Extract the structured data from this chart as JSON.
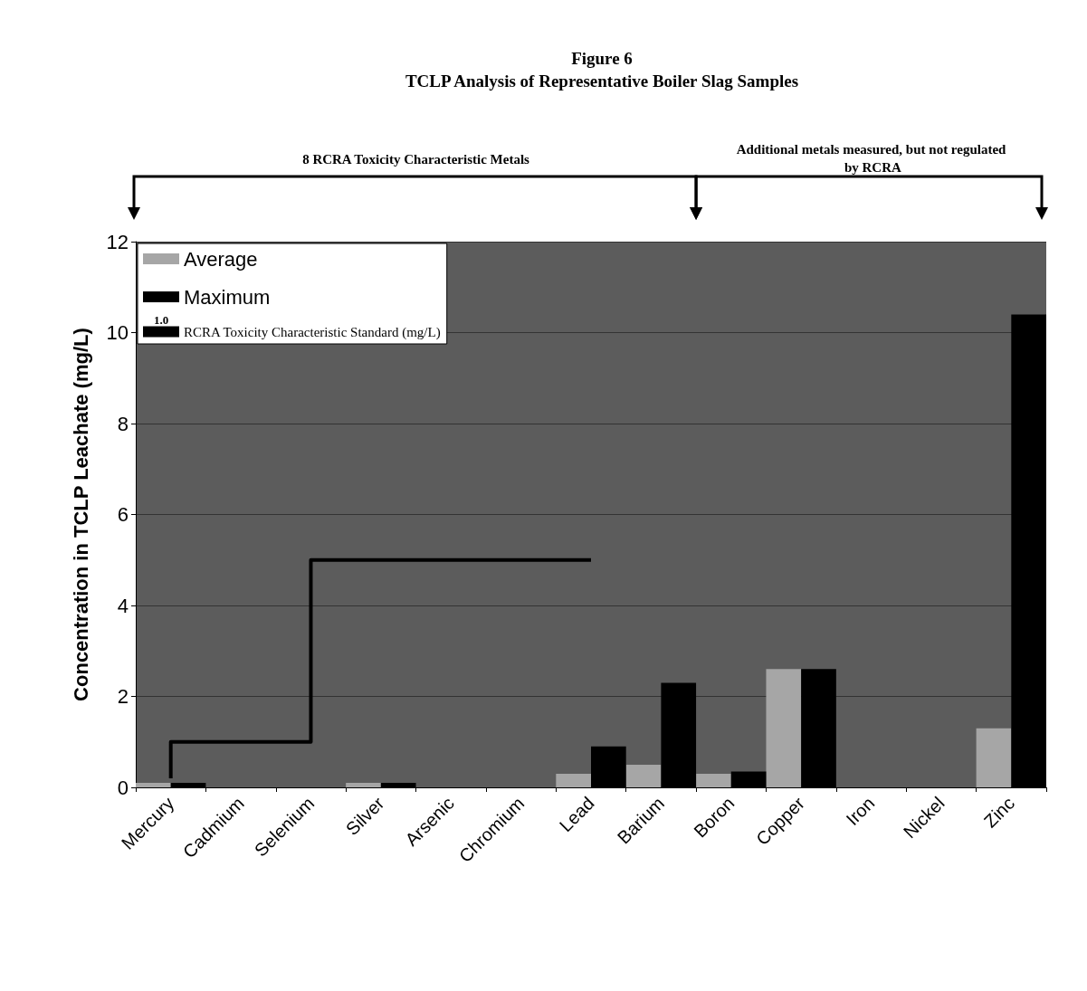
{
  "chart_data": {
    "type": "bar",
    "title": "Figure 6",
    "subtitle": "TCLP Analysis of Representative Boiler Slag Samples",
    "ylabel": "Concentration in TCLP Leachate (mg/L)",
    "categories": [
      "Mercury",
      "Cadmium",
      "Selenium",
      "Silver",
      "Arsenic",
      "Chromium",
      "Lead",
      "Barium",
      "Boron",
      "Copper",
      "Iron",
      "Nickel",
      "Zinc"
    ],
    "series": [
      {
        "name": "Average",
        "color": "#a6a6a6",
        "values": [
          0.1,
          0,
          0,
          0.1,
          0,
          0,
          0.3,
          0.5,
          0.3,
          2.6,
          0,
          0,
          1.3
        ]
      },
      {
        "name": "Maximum",
        "color": "#000000",
        "values": [
          0.1,
          0,
          0,
          0.1,
          0,
          0,
          0.9,
          2.3,
          0.35,
          2.6,
          0,
          0,
          10.4
        ]
      },
      {
        "name": "RCRA Toxicity Characteristic Standard (mg/L)",
        "type": "step",
        "color": "#000000",
        "line_style": "solid",
        "values": [
          0.2,
          1.0,
          1.0,
          5.0,
          5.0,
          5.0,
          5.0,
          null,
          null,
          null,
          null,
          null,
          null
        ]
      }
    ],
    "ylim": [
      0,
      12
    ],
    "yticks": [
      0,
      2,
      4,
      6,
      8,
      10,
      12
    ],
    "grid": "y",
    "legend": "top left",
    "annotations": [
      "8 RCRA Toxicity Characteristic Metals",
      "Additional metals measured, but not regulated by RCRA",
      "1.0"
    ]
  }
}
